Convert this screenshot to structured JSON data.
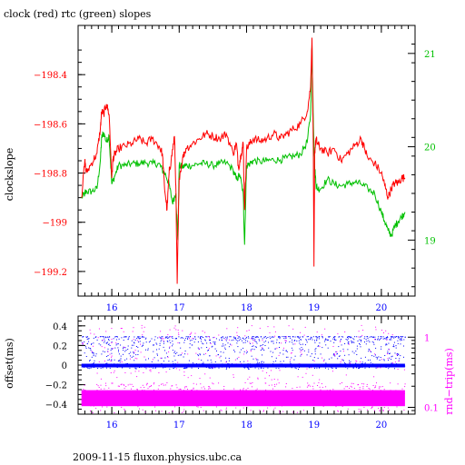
{
  "figure": {
    "title": "clock (red) rtc (green) slopes",
    "footer": "2009-11-15 fluxon.physics.ubc.ca"
  },
  "colors": {
    "clock": "#ff0000",
    "rtc": "#00c000",
    "offset": "#0000ff",
    "rndtrip": "#ff00ff",
    "axis": "#000000"
  },
  "chart_data": [
    {
      "type": "line",
      "title": "clock (red) rtc (green) slopes",
      "xlabel": "",
      "ylabel": "clockslope",
      "y2label": "",
      "xlim": [
        15.5,
        20.5
      ],
      "ylim": [
        -199.3,
        -198.2
      ],
      "y2lim": [
        18.4,
        21.3
      ],
      "xticks": [
        16,
        17,
        18,
        19,
        20
      ],
      "yticks": [
        -198.4,
        -198.6,
        -198.8,
        -199,
        -199.2
      ],
      "ytick_labels": [
        "−198.4",
        "−198.6",
        "−198.8",
        "−199",
        "−199.2"
      ],
      "y2ticks": [
        19,
        20,
        21
      ],
      "grid": false,
      "series": [
        {
          "name": "clock",
          "axis": "left",
          "x": [
            15.55,
            15.6,
            15.62,
            15.7,
            15.78,
            15.83,
            15.85,
            15.88,
            15.92,
            15.96,
            16.0,
            16.02,
            16.05,
            16.1,
            16.2,
            16.3,
            16.4,
            16.5,
            16.6,
            16.7,
            16.75,
            16.78,
            16.82,
            16.85,
            16.88,
            16.93,
            16.95,
            16.97,
            17.0,
            17.05,
            17.1,
            17.2,
            17.3,
            17.4,
            17.5,
            17.6,
            17.7,
            17.8,
            17.85,
            17.88,
            17.92,
            17.95,
            17.97,
            18.0,
            18.05,
            18.1,
            18.2,
            18.3,
            18.4,
            18.5,
            18.6,
            18.7,
            18.8,
            18.9,
            18.95,
            18.97,
            18.99,
            19.0,
            19.01,
            19.03,
            19.05,
            19.1,
            19.2,
            19.3,
            19.4,
            19.5,
            19.6,
            19.7,
            19.75,
            19.8,
            19.9,
            20.0,
            20.05,
            20.1,
            20.15,
            20.2,
            20.25,
            20.3,
            20.35
          ],
          "y": [
            -198.9,
            -198.75,
            -198.8,
            -198.76,
            -198.72,
            -198.62,
            -198.55,
            -198.56,
            -198.52,
            -198.56,
            -198.82,
            -198.74,
            -198.72,
            -198.7,
            -198.69,
            -198.68,
            -198.66,
            -198.68,
            -198.66,
            -198.69,
            -198.72,
            -198.85,
            -198.95,
            -198.8,
            -198.75,
            -198.65,
            -198.85,
            -199.25,
            -198.82,
            -198.74,
            -198.7,
            -198.68,
            -198.66,
            -198.64,
            -198.65,
            -198.66,
            -198.64,
            -198.72,
            -198.68,
            -198.78,
            -198.72,
            -198.68,
            -198.95,
            -198.7,
            -198.68,
            -198.66,
            -198.67,
            -198.66,
            -198.64,
            -198.66,
            -198.64,
            -198.62,
            -198.6,
            -198.55,
            -198.45,
            -198.25,
            -198.7,
            -199.18,
            -198.72,
            -198.66,
            -198.68,
            -198.7,
            -198.72,
            -198.7,
            -198.75,
            -198.72,
            -198.69,
            -198.66,
            -198.7,
            -198.74,
            -198.76,
            -198.8,
            -198.85,
            -198.9,
            -198.86,
            -198.84,
            -198.84,
            -198.82,
            -198.82
          ]
        },
        {
          "name": "rtc",
          "axis": "right",
          "x": [
            15.55,
            15.6,
            15.62,
            15.7,
            15.78,
            15.83,
            15.85,
            15.88,
            15.92,
            15.96,
            16.0,
            16.05,
            16.1,
            16.2,
            16.3,
            16.4,
            16.5,
            16.6,
            16.7,
            16.75,
            16.8,
            16.85,
            16.9,
            16.95,
            16.98,
            17.0,
            17.05,
            17.1,
            17.2,
            17.3,
            17.4,
            17.5,
            17.6,
            17.7,
            17.8,
            17.85,
            17.9,
            17.95,
            17.97,
            18.0,
            18.05,
            18.1,
            18.2,
            18.3,
            18.4,
            18.5,
            18.6,
            18.7,
            18.8,
            18.9,
            18.95,
            18.97,
            18.99,
            19.01,
            19.03,
            19.05,
            19.1,
            19.2,
            19.3,
            19.4,
            19.5,
            19.6,
            19.7,
            19.8,
            19.9,
            20.0,
            20.05,
            20.1,
            20.15,
            20.2,
            20.25,
            20.3,
            20.35
          ],
          "y": [
            19.45,
            19.5,
            19.52,
            19.52,
            19.55,
            19.85,
            20.1,
            20.15,
            20.05,
            20.12,
            19.6,
            19.7,
            19.8,
            19.8,
            19.82,
            19.82,
            19.83,
            19.82,
            19.82,
            19.75,
            19.7,
            19.6,
            19.4,
            19.5,
            19.0,
            19.8,
            19.78,
            19.8,
            19.8,
            19.82,
            19.82,
            19.8,
            19.82,
            19.83,
            19.75,
            19.65,
            19.7,
            19.5,
            18.95,
            19.8,
            19.82,
            19.85,
            19.84,
            19.85,
            19.86,
            19.86,
            19.88,
            19.9,
            19.92,
            20.05,
            20.35,
            21.1,
            20.3,
            19.8,
            19.6,
            19.55,
            19.55,
            19.65,
            19.6,
            19.58,
            19.6,
            19.62,
            19.6,
            19.55,
            19.5,
            19.3,
            19.2,
            19.1,
            19.05,
            19.15,
            19.2,
            19.25,
            19.3
          ]
        }
      ]
    },
    {
      "type": "scatter",
      "xlabel": "",
      "ylabel": "offset(ms)",
      "y2label": "rnd−trip(ms)",
      "xlim": [
        15.5,
        20.5
      ],
      "ylim": [
        -0.5,
        0.5
      ],
      "y2lim_log": [
        0.08,
        2.0
      ],
      "xticks": [
        16,
        17,
        18,
        19,
        20
      ],
      "yticks": [
        0.4,
        0.2,
        0,
        -0.2,
        -0.4
      ],
      "ytick_labels": [
        "0.4",
        "0.2",
        "0",
        "−0.2",
        "−0.4"
      ],
      "y2ticks": [
        1,
        0.1
      ],
      "y2tick_labels": [
        "1",
        "0.1"
      ],
      "grid": false,
      "series": [
        {
          "name": "offset",
          "axis": "left",
          "band_center": -0.005,
          "scatter_min": -0.32,
          "scatter_max": 0.05
        },
        {
          "name": "rnd-trip",
          "axis": "right",
          "band_center": 0.13,
          "scatter_min": 0.1,
          "scatter_max": 1.5
        }
      ],
      "x_domain": [
        15.55,
        20.35
      ]
    }
  ]
}
